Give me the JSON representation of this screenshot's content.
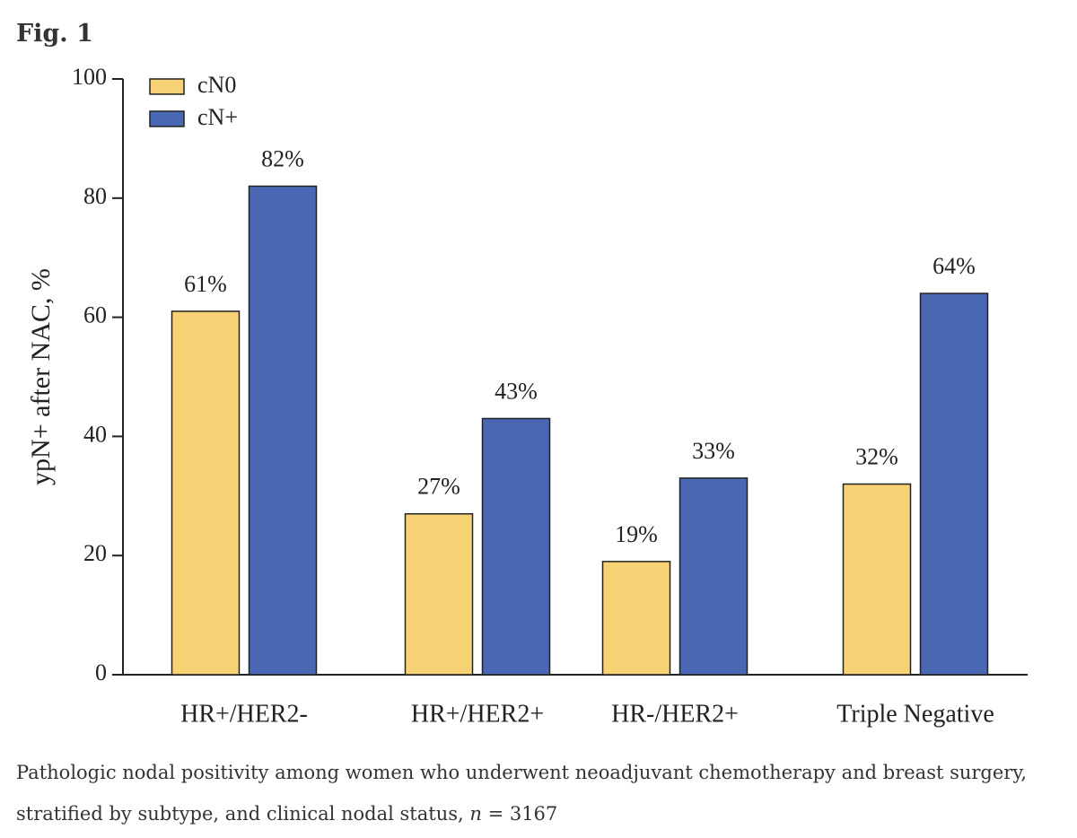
{
  "figure_label": "Fig. 1",
  "chart_data": {
    "type": "bar",
    "ylabel": "ypN+ after NAC, %",
    "categories": [
      "HR+/HER2-",
      "HR+/HER2+",
      "HR-/HER2+",
      "Triple Negative"
    ],
    "series": [
      {
        "name": "cN0",
        "color": "#f7d274",
        "values": [
          61,
          27,
          19,
          32
        ],
        "value_labels": [
          "61%",
          "27%",
          "19%",
          "32%"
        ]
      },
      {
        "name": "cN+",
        "color": "#4a67b3",
        "values": [
          82,
          43,
          33,
          64
        ],
        "value_labels": [
          "82%",
          "43%",
          "33%",
          "64%"
        ]
      }
    ],
    "ylim": [
      0,
      100
    ],
    "yticks": [
      0,
      20,
      40,
      60,
      80,
      100
    ],
    "legend": "upper left"
  },
  "caption": [
    "Pathologic nodal positivity among women who underwent neoadjuvant chemotherapy and breast surgery, stratified by subtype, and clinical nodal status, ",
    "n",
    " = 3167"
  ]
}
